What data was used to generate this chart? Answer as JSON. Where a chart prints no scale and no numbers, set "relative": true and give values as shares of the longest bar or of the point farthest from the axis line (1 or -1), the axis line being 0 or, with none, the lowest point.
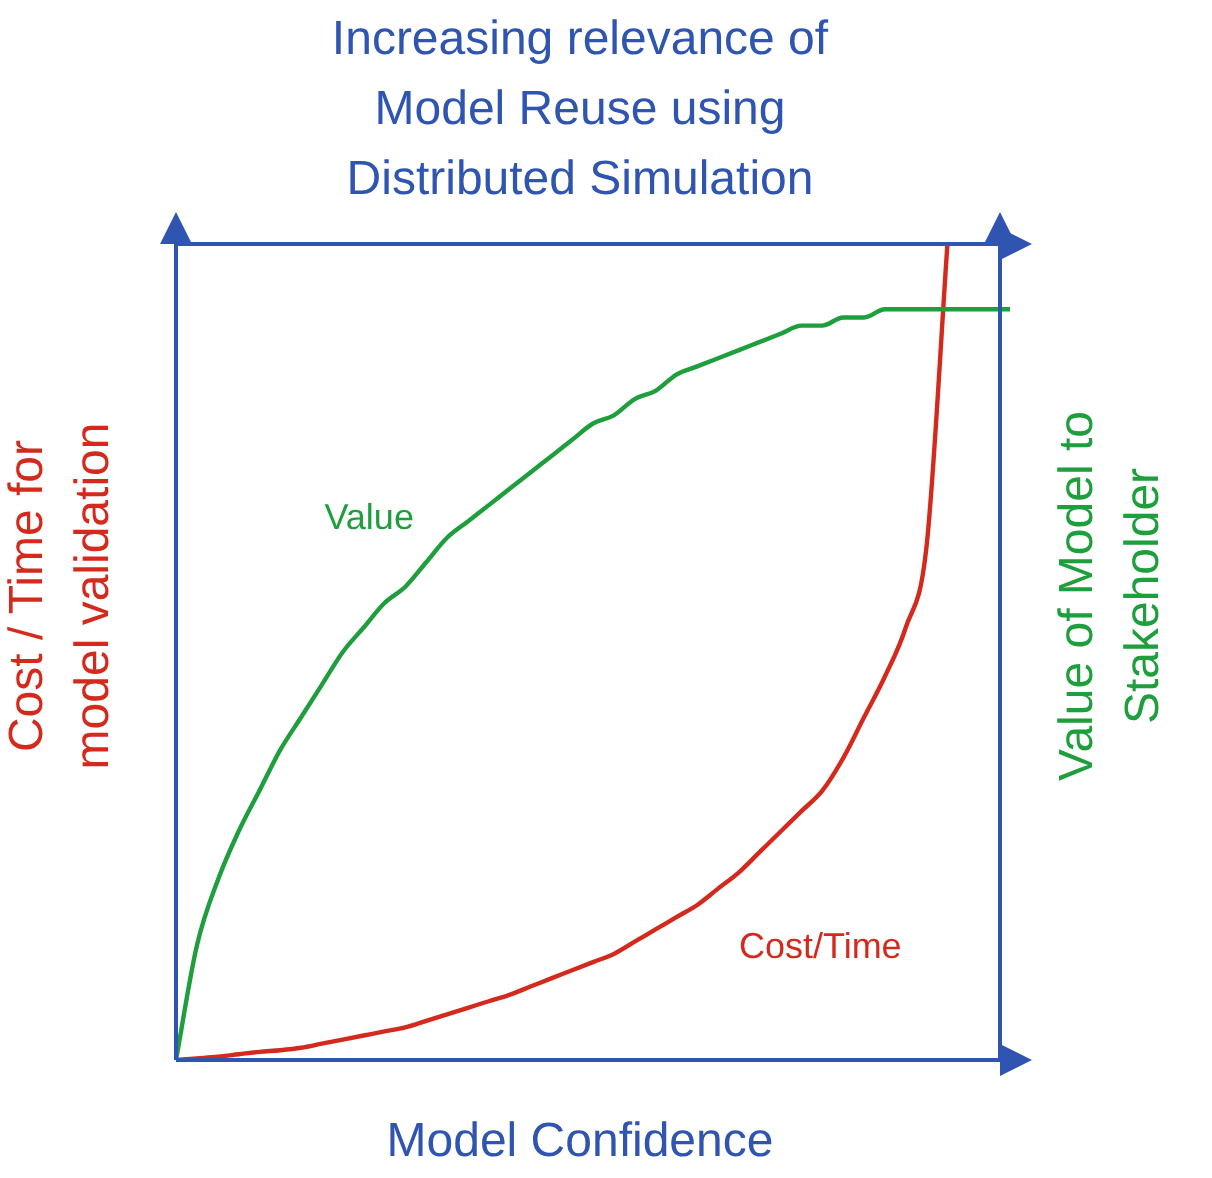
{
  "chart_data": {
    "type": "line",
    "title": "Increasing relevance of Model Reuse using Distributed Simulation",
    "xlabel": "Model Confidence",
    "ylabel": "Cost / Time for model validation",
    "y2label": "Value of Model to Stakeholder",
    "relative": true,
    "legend": false,
    "marker": "none",
    "categories": [
      null,
      null,
      null,
      null,
      null,
      null,
      null,
      null,
      null,
      null,
      null,
      null,
      null,
      null,
      null,
      null,
      null,
      null,
      null,
      null,
      null,
      null,
      null,
      null,
      null,
      null,
      null,
      null,
      null,
      null,
      null,
      null,
      null,
      null,
      null,
      null,
      null,
      null,
      null,
      null,
      null
    ],
    "series": [
      {
        "name": "Value",
        "color": "#1e9e3c",
        "values": [
          0,
          0.14,
          0.22,
          0.28,
          0.33,
          0.38,
          0.42,
          0.46,
          0.5,
          0.53,
          0.56,
          0.58,
          0.61,
          0.64,
          0.66,
          0.68,
          0.7,
          0.72,
          0.74,
          0.76,
          0.78,
          0.79,
          0.81,
          0.82,
          0.84,
          0.85,
          0.86,
          0.87,
          0.88,
          0.89,
          0.9,
          0.9,
          0.91,
          0.91,
          0.92,
          0.92,
          0.92,
          0.92,
          0.92,
          0.92,
          0.92
        ]
      },
      {
        "name": "Cost/Time",
        "color": "#d42a1e",
        "values": [
          0,
          0.002,
          0.004,
          0.007,
          0.01,
          0.012,
          0.015,
          0.02,
          0.025,
          0.03,
          0.035,
          0.04,
          0.048,
          0.056,
          0.064,
          0.072,
          0.08,
          0.09,
          0.1,
          0.11,
          0.12,
          0.13,
          0.145,
          0.16,
          0.175,
          0.19,
          0.21,
          0.23,
          0.255,
          0.28,
          0.305,
          0.33,
          0.37,
          0.42,
          0.47,
          0.53,
          0.63,
          1,
          null,
          null,
          null
        ]
      }
    ]
  }
}
